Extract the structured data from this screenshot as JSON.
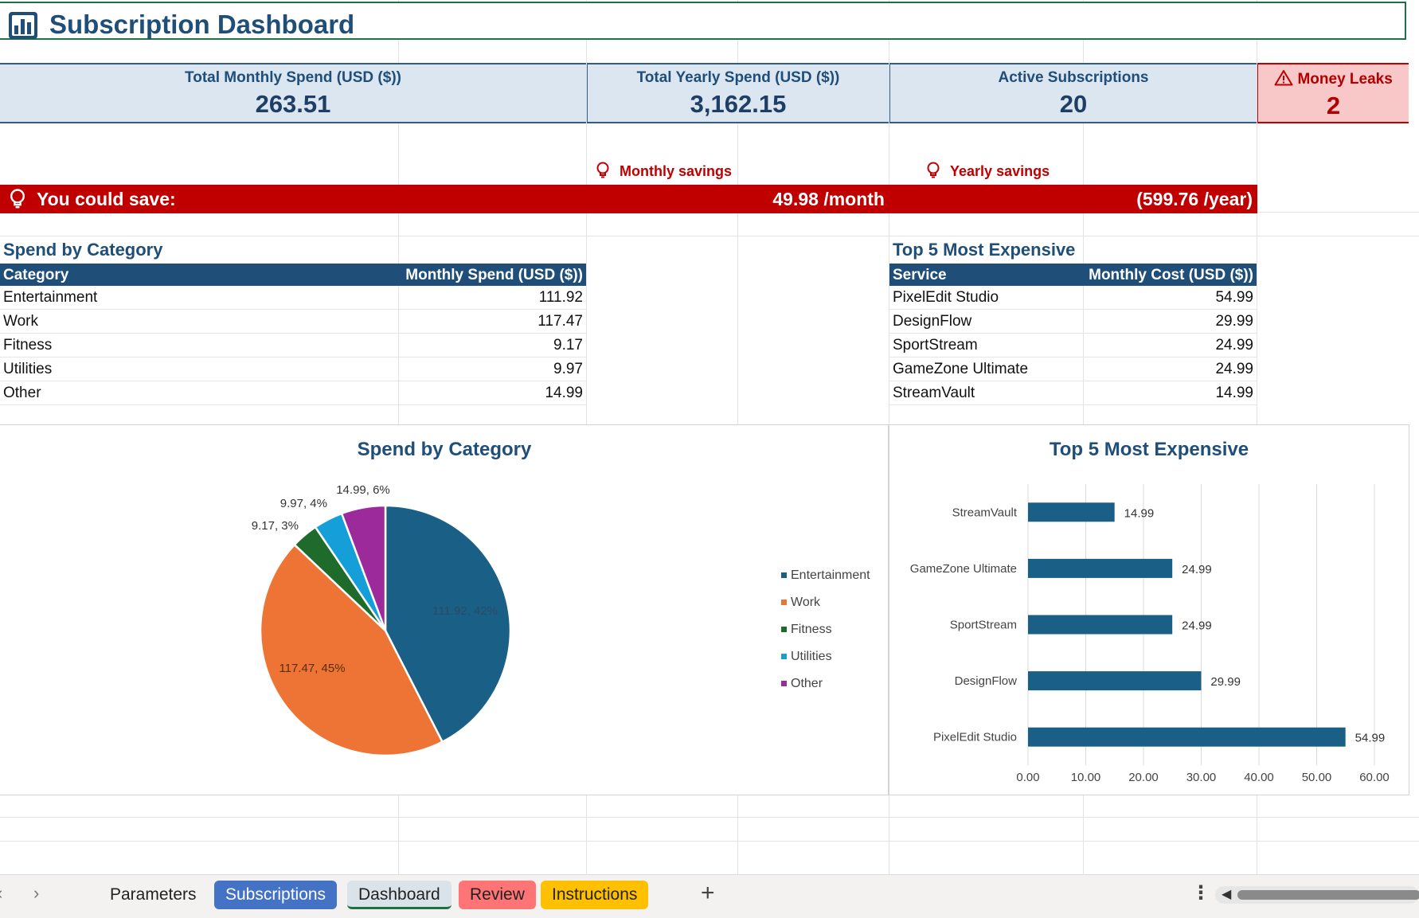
{
  "title": "Subscription Dashboard",
  "kpis": {
    "monthly": {
      "label": "Total Monthly Spend (USD ($))",
      "value": "263.51"
    },
    "yearly": {
      "label": "Total Yearly Spend (USD ($))",
      "value": "3,162.15"
    },
    "active": {
      "label": "Active Subscriptions",
      "value": "20"
    },
    "leaks": {
      "label": "Money Leaks",
      "value": "2"
    }
  },
  "savings": {
    "monthly_header": "Monthly savings",
    "yearly_header": "Yearly savings",
    "bar_label": "You could save:",
    "monthly_value": "49.98 /month",
    "yearly_value": "(599.76 /year)"
  },
  "category_table": {
    "title": "Spend by Category",
    "headers": [
      "Category",
      "Monthly Spend (USD ($))"
    ],
    "rows": [
      [
        "Entertainment",
        "111.92"
      ],
      [
        "Work",
        "117.47"
      ],
      [
        "Fitness",
        "9.17"
      ],
      [
        "Utilities",
        "9.97"
      ],
      [
        "Other",
        "14.99"
      ]
    ]
  },
  "top5_table": {
    "title": "Top 5 Most Expensive",
    "headers": [
      "Service",
      "Monthly Cost (USD ($))"
    ],
    "rows": [
      [
        "PixelEdit Studio",
        "54.99"
      ],
      [
        "DesignFlow",
        "29.99"
      ],
      [
        "SportStream",
        "24.99"
      ],
      [
        "GameZone Ultimate",
        "24.99"
      ],
      [
        "StreamVault",
        "14.99"
      ]
    ]
  },
  "chart_data": [
    {
      "type": "pie",
      "title": "Spend by Category",
      "categories": [
        "Entertainment",
        "Work",
        "Fitness",
        "Utilities",
        "Other"
      ],
      "values": [
        111.92,
        117.47,
        9.17,
        9.97,
        14.99
      ],
      "data_labels": [
        "111.92, 42%",
        "117.47, 45%",
        "9.17, 3%",
        "9.97, 4%",
        "14.99, 6%"
      ],
      "colors": [
        "#1a5f86",
        "#ed7434",
        "#1f6b2b",
        "#159fd8",
        "#9d2a9a"
      ],
      "legend_placement": "right"
    },
    {
      "type": "bar",
      "orientation": "horizontal",
      "title": "Top 5 Most Expensive",
      "categories": [
        "StreamVault",
        "GameZone Ultimate",
        "SportStream",
        "DesignFlow",
        "PixelEdit Studio"
      ],
      "values": [
        14.99,
        24.99,
        24.99,
        29.99,
        54.99
      ],
      "data_labels": [
        "14.99",
        "24.99",
        "24.99",
        "29.99",
        "54.99"
      ],
      "xlim": [
        0,
        60
      ],
      "x_ticks": [
        "0.00",
        "10.00",
        "20.00",
        "30.00",
        "40.00",
        "50.00",
        "60.00"
      ],
      "grid": true,
      "color": "#1a5f86"
    }
  ],
  "sheet_tabs": {
    "parameters": "Parameters",
    "subscriptions": "Subscriptions",
    "dashboard": "Dashboard",
    "review": "Review",
    "instructions": "Instructions",
    "add": "+",
    "more": "⋮",
    "nav_prev": "‹",
    "nav_next": "›"
  }
}
